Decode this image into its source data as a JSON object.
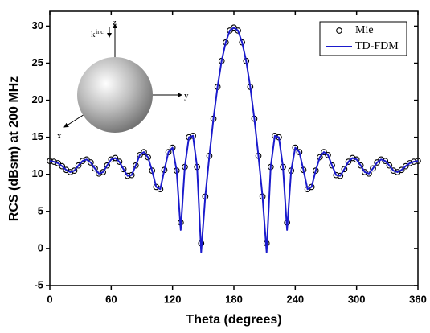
{
  "chart_data": {
    "type": "line",
    "x_label": "Theta (degrees)",
    "y_label": "RCS (dBsm) at 200 MHz",
    "xlim": [
      0,
      360
    ],
    "xticks": [
      0,
      60,
      120,
      180,
      240,
      300,
      360
    ],
    "ylim": [
      -5,
      32
    ],
    "yticks": [
      -5,
      0,
      5,
      10,
      15,
      20,
      25,
      30
    ],
    "legend": "top-right",
    "annotations": [
      "z",
      "y",
      "x",
      "k",
      "inc"
    ],
    "series": [
      {
        "name": "Mie",
        "color": "#000000",
        "marker": "open-circle",
        "x": [
          0,
          4,
          8,
          12,
          16,
          20,
          24,
          28,
          32,
          36,
          40,
          44,
          48,
          52,
          56,
          60,
          64,
          68,
          72,
          76,
          80,
          84,
          88,
          92,
          96,
          100,
          104,
          108,
          112,
          116,
          120,
          124,
          128,
          132,
          136,
          140,
          144,
          148,
          152,
          156,
          160,
          164,
          168,
          172,
          176,
          180,
          184,
          188,
          192,
          196,
          200,
          204,
          208,
          212,
          216,
          220,
          224,
          228,
          232,
          236,
          240,
          244,
          248,
          252,
          256,
          260,
          264,
          268,
          272,
          276,
          280,
          284,
          288,
          292,
          296,
          300,
          304,
          308,
          312,
          316,
          320,
          324,
          328,
          332,
          336,
          340,
          344,
          348,
          352,
          356,
          360
        ],
        "values": [
          11.8,
          11.7,
          11.5,
          11.1,
          10.6,
          10.3,
          10.5,
          11.2,
          11.8,
          12.0,
          11.6,
          10.8,
          10.1,
          10.3,
          11.2,
          12.0,
          12.2,
          11.7,
          10.7,
          9.8,
          9.9,
          11.2,
          12.6,
          13.0,
          12.3,
          10.5,
          8.3,
          8.0,
          10.6,
          13.0,
          13.6,
          10.5,
          3.5,
          11.0,
          15.0,
          15.2,
          11.0,
          0.7,
          7.0,
          12.5,
          17.5,
          21.8,
          25.3,
          27.8,
          29.4,
          29.8,
          29.4,
          27.8,
          25.3,
          21.8,
          17.5,
          12.5,
          7.0,
          0.7,
          11.0,
          15.2,
          15.0,
          11.0,
          3.5,
          10.5,
          13.6,
          13.0,
          10.6,
          8.0,
          8.3,
          10.5,
          12.3,
          13.0,
          12.6,
          11.2,
          9.9,
          9.8,
          10.7,
          11.7,
          12.2,
          12.0,
          11.2,
          10.3,
          10.1,
          10.8,
          11.6,
          12.0,
          11.8,
          11.2,
          10.5,
          10.3,
          10.6,
          11.1,
          11.5,
          11.7,
          11.8
        ]
      },
      {
        "name": "TD-FDM",
        "color": "#1a1acc",
        "marker": "line",
        "x": [
          0,
          4,
          8,
          12,
          16,
          20,
          24,
          28,
          32,
          36,
          40,
          44,
          48,
          52,
          56,
          60,
          64,
          68,
          72,
          76,
          80,
          84,
          88,
          92,
          96,
          100,
          104,
          108,
          112,
          116,
          120,
          124,
          128,
          132,
          136,
          140,
          144,
          148,
          152,
          156,
          160,
          164,
          168,
          172,
          176,
          180,
          184,
          188,
          192,
          196,
          200,
          204,
          208,
          212,
          216,
          220,
          224,
          228,
          232,
          236,
          240,
          244,
          248,
          252,
          256,
          260,
          264,
          268,
          272,
          276,
          280,
          284,
          288,
          292,
          296,
          300,
          304,
          308,
          312,
          316,
          320,
          324,
          328,
          332,
          336,
          340,
          344,
          348,
          352,
          356,
          360
        ],
        "values": [
          11.8,
          11.7,
          11.5,
          11.1,
          10.6,
          10.3,
          10.5,
          11.2,
          11.8,
          12.0,
          11.6,
          10.8,
          10.1,
          10.3,
          11.2,
          12.0,
          12.2,
          11.7,
          10.7,
          9.8,
          9.9,
          11.2,
          12.6,
          13.0,
          12.3,
          10.5,
          8.3,
          8.0,
          10.6,
          13.0,
          13.6,
          10.5,
          2.5,
          11.0,
          15.0,
          15.2,
          11.0,
          -0.5,
          7.0,
          12.5,
          17.5,
          21.8,
          25.3,
          27.8,
          29.4,
          29.8,
          29.4,
          27.8,
          25.3,
          21.8,
          17.5,
          12.5,
          7.0,
          -0.5,
          11.0,
          15.2,
          15.0,
          11.0,
          2.5,
          10.5,
          13.6,
          13.0,
          10.6,
          8.0,
          8.3,
          10.5,
          12.3,
          13.0,
          12.6,
          11.2,
          9.9,
          9.8,
          10.7,
          11.7,
          12.2,
          12.0,
          11.2,
          10.3,
          10.1,
          10.8,
          11.6,
          12.0,
          11.8,
          11.2,
          10.5,
          10.3,
          10.6,
          11.1,
          11.5,
          11.7,
          11.8
        ]
      }
    ]
  }
}
